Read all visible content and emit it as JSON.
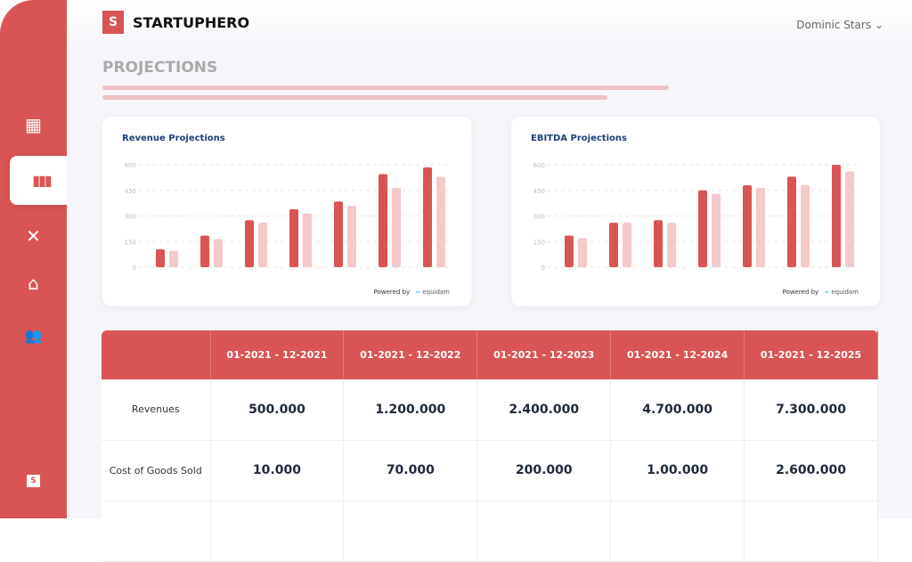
{
  "app": {
    "brand": "STARTUPHERO",
    "logo_letter": "S",
    "user": "Dominic Stars",
    "page_title": "PROJECTIONS"
  },
  "sidebar": {
    "items": [
      {
        "icon": "dashboard-icon",
        "glyph": "▦"
      },
      {
        "icon": "bar-chart-icon",
        "glyph": "▮▮▮",
        "active": true
      },
      {
        "icon": "network-icon",
        "glyph": "✕"
      },
      {
        "icon": "bank-icon",
        "glyph": "⌂"
      },
      {
        "icon": "users-icon",
        "glyph": "👥"
      }
    ]
  },
  "colors": {
    "accent": "#d95454",
    "light": "#f4c9c9"
  },
  "chart_data": [
    {
      "type": "bar",
      "title": "Revenue Projections",
      "ylim": [
        0,
        600
      ],
      "yticks": [
        0,
        150,
        300,
        450,
        600
      ],
      "grid": true,
      "series": [
        {
          "values": [
            105,
            185,
            275,
            340,
            385,
            545,
            585
          ]
        },
        {
          "values": [
            95,
            165,
            260,
            315,
            360,
            465,
            530
          ]
        }
      ]
    },
    {
      "type": "bar",
      "title": "EBITDA Projections",
      "ylim": [
        0,
        600
      ],
      "yticks": [
        0,
        150,
        300,
        450,
        600
      ],
      "grid": true,
      "series": [
        {
          "values": [
            185,
            260,
            275,
            450,
            480,
            530,
            600
          ]
        },
        {
          "values": [
            170,
            260,
            260,
            430,
            465,
            480,
            560
          ]
        }
      ]
    }
  ],
  "powered": {
    "label": "Powered by",
    "brand": "equidam"
  },
  "table": {
    "headers": [
      "",
      "01-2021 - 12-2021",
      "01-2021 - 12-2022",
      "01-2021 - 12-2023",
      "01-2021 - 12-2024",
      "01-2021 - 12-2025"
    ],
    "rows": [
      [
        "Revenues",
        "500.000",
        "1.200.000",
        "2.400.000",
        "4.700.000",
        "7.300.000"
      ],
      [
        "Cost of Goods Sold",
        "10.000",
        "70.000",
        "200.000",
        "1.00.000",
        "2.600.000"
      ],
      [
        "",
        "",
        "",
        "",
        "",
        ""
      ]
    ]
  }
}
